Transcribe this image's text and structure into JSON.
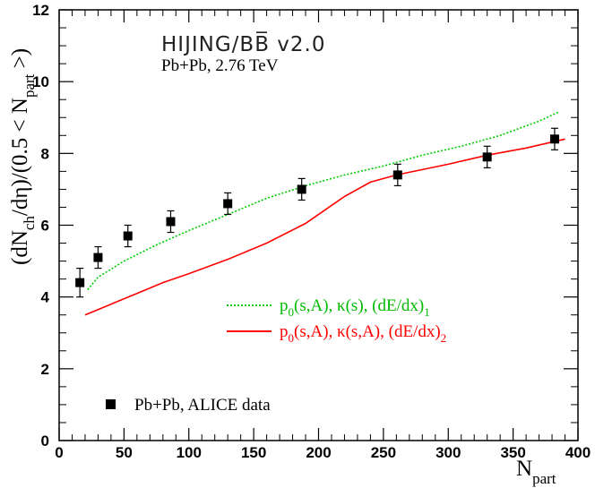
{
  "chart_data": {
    "type": "line",
    "title": "HIJING/BB̅ v2.0",
    "subtitle": "Pb+Pb, 2.76 TeV",
    "xlabel": "N",
    "xlabel_sub": "part",
    "ylabel_parts": {
      "a": "(dN",
      "b": "ch",
      "c": "/dη)/(0.5 < N",
      "d": "part",
      "e": " >)"
    },
    "xlim": [
      0,
      400
    ],
    "ylim": [
      0,
      12
    ],
    "xticks": [
      0,
      50,
      100,
      150,
      200,
      250,
      300,
      350,
      400
    ],
    "yticks": [
      0,
      2,
      4,
      6,
      8,
      10,
      12
    ],
    "legend_position": "bottom-left",
    "series": [
      {
        "kind": "points",
        "name": "Pb+Pb, ALICE data",
        "color": "#000000",
        "points": [
          {
            "x": 16,
            "y": 4.4,
            "err": 0.4
          },
          {
            "x": 30,
            "y": 5.1,
            "err": 0.3
          },
          {
            "x": 53,
            "y": 5.7,
            "err": 0.3
          },
          {
            "x": 86,
            "y": 6.1,
            "err": 0.3
          },
          {
            "x": 130,
            "y": 6.6,
            "err": 0.3
          },
          {
            "x": 187,
            "y": 7.0,
            "err": 0.3
          },
          {
            "x": 261,
            "y": 7.4,
            "err": 0.3
          },
          {
            "x": 330,
            "y": 7.9,
            "err": 0.3
          },
          {
            "x": 382,
            "y": 8.4,
            "err": 0.3
          }
        ]
      },
      {
        "kind": "line",
        "style": "dotted",
        "color": "#00cc00",
        "legend": {
          "a": "p",
          "b": "0",
          "c": "(s,A), κ(s), (dE/dx)",
          "d": "1"
        },
        "x": [
          22,
          30,
          50,
          75,
          100,
          130,
          160,
          190,
          220,
          250,
          280,
          310,
          340,
          370,
          385
        ],
        "y": [
          4.2,
          4.55,
          5.0,
          5.45,
          5.85,
          6.3,
          6.75,
          7.1,
          7.4,
          7.65,
          7.95,
          8.2,
          8.5,
          8.9,
          9.15
        ]
      },
      {
        "kind": "line",
        "style": "solid",
        "color": "#ff0000",
        "legend": {
          "a": "p",
          "b": "0",
          "c": "(s,A), κ(s,A), (dE/dx)",
          "d": "2"
        },
        "x": [
          20,
          40,
          60,
          80,
          100,
          130,
          160,
          190,
          220,
          240,
          260,
          280,
          300,
          330,
          360,
          390
        ],
        "y": [
          3.5,
          3.8,
          4.1,
          4.4,
          4.65,
          5.05,
          5.5,
          6.05,
          6.8,
          7.2,
          7.4,
          7.55,
          7.7,
          7.95,
          8.15,
          8.4
        ]
      }
    ]
  }
}
